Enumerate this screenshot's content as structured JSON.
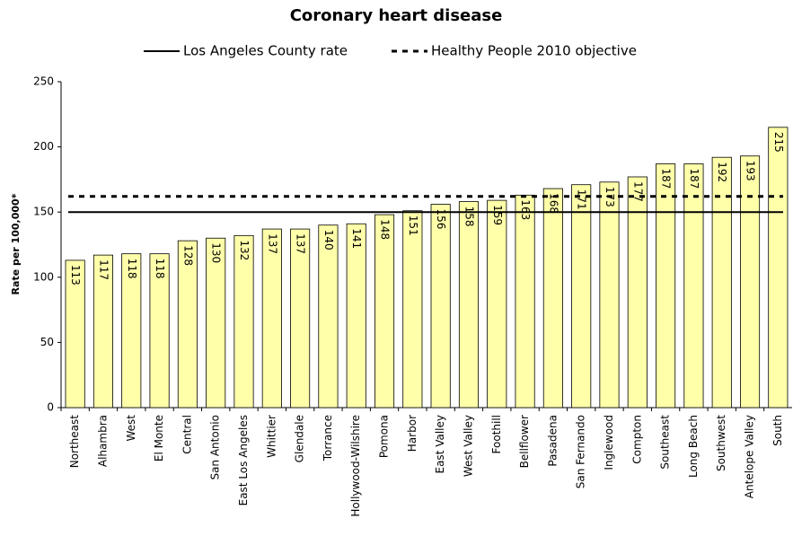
{
  "chart_data": {
    "type": "bar",
    "title": "Coronary heart disease",
    "y_label": "Rate per 100,000*",
    "categories": [
      "Northeast",
      "Alhambra",
      "West",
      "El Monte",
      "Central",
      "San Antonio",
      "East Los Angeles",
      "Whittier",
      "Glendale",
      "Torrance",
      "Hollywood-Wilshire",
      "Pomona",
      "Harbor",
      "East Valley",
      "West Valley",
      "Foothill",
      "Bellflower",
      "Pasadena",
      "San Fernando",
      "Inglewood",
      "Compton",
      "Southeast",
      "Long Beach",
      "Southwest",
      "Antelope Valley",
      "South"
    ],
    "values": [
      113,
      117,
      118,
      118,
      128,
      130,
      132,
      137,
      137,
      140,
      141,
      148,
      151,
      156,
      158,
      159,
      163,
      168,
      171,
      173,
      177,
      187,
      187,
      192,
      193,
      215
    ],
    "color": "#ffffaa",
    "reference_lines": [
      {
        "name": "Los Angeles County rate",
        "value": 150,
        "style": "solid"
      },
      {
        "name": "Healthy People 2010 objective",
        "value": 162,
        "style": "dotted"
      }
    ],
    "ylim": [
      0,
      250
    ],
    "yticks": [
      0,
      50,
      100,
      150,
      200,
      250
    ],
    "grid": false
  }
}
